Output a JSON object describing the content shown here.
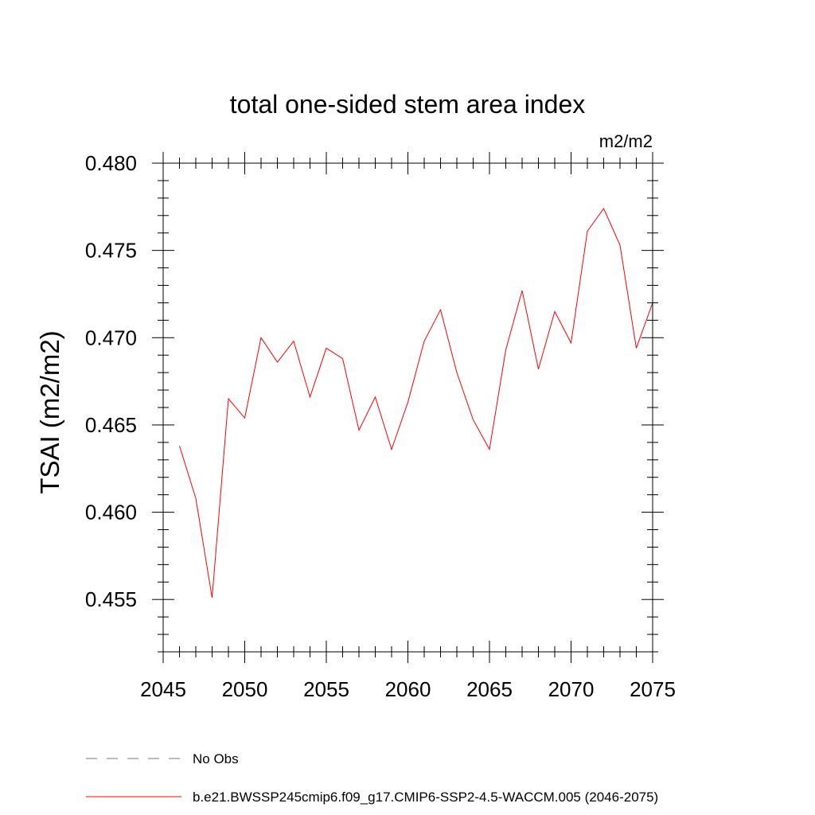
{
  "chart_data": {
    "type": "line",
    "title": "total one-sided stem area index",
    "units_label": "m2/m2",
    "xlabel": "",
    "ylabel": "TSAI  (m2/m2)",
    "xlim": [
      2045,
      2075
    ],
    "ylim": [
      0.452,
      0.48
    ],
    "x_ticks": [
      2045,
      2050,
      2055,
      2060,
      2065,
      2070,
      2075
    ],
    "x_tick_labels": [
      "2045",
      "2050",
      "2055",
      "2060",
      "2065",
      "2070",
      "2075"
    ],
    "y_ticks": [
      0.455,
      0.46,
      0.465,
      0.47,
      0.475,
      0.48
    ],
    "y_tick_labels": [
      "0.455",
      "0.460",
      "0.465",
      "0.470",
      "0.475",
      "0.480"
    ],
    "series": [
      {
        "name": "b.e21.BWSSP245cmip6.f09_g17.CMIP6-SSP2-4.5-WACCM.005 (2046-2075)",
        "color": "#ff0000",
        "x": [
          2046,
          2047,
          2048,
          2049,
          2050,
          2051,
          2052,
          2053,
          2054,
          2055,
          2056,
          2057,
          2058,
          2059,
          2060,
          2061,
          2062,
          2063,
          2064,
          2065,
          2066,
          2067,
          2068,
          2069,
          2070,
          2071,
          2072,
          2073,
          2074,
          2075
        ],
        "values": [
          0.4638,
          0.4608,
          0.4551,
          0.4665,
          0.4654,
          0.47,
          0.4686,
          0.4698,
          0.4666,
          0.4694,
          0.4688,
          0.4647,
          0.4666,
          0.4636,
          0.4663,
          0.4698,
          0.4716,
          0.468,
          0.4653,
          0.4636,
          0.4693,
          0.4727,
          0.4682,
          0.4715,
          0.4697,
          0.4761,
          0.4774,
          0.4753,
          0.4694,
          0.472
        ]
      }
    ],
    "legend": [
      {
        "label": "No Obs",
        "style": "dashed",
        "color": "#7a6fb0"
      },
      {
        "label": "b.e21.BWSSP245cmip6.f09_g17.CMIP6-SSP2-4.5-WACCM.005 (2046-2075)",
        "style": "solid",
        "color": "#ff0000"
      }
    ]
  }
}
